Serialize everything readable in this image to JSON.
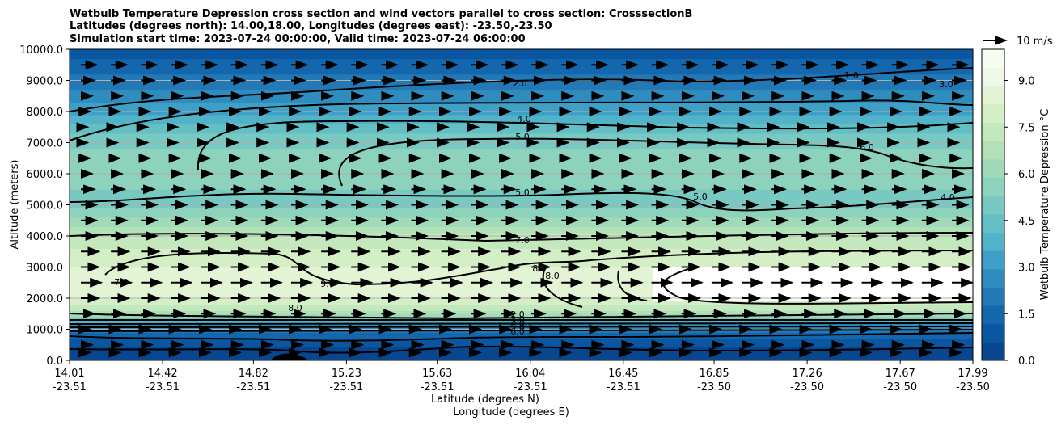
{
  "chart_data": {
    "type": "contourf",
    "title_lines": [
      "Wetbulb Temperature Depression cross section and wind vectors parallel to cross section: CrosssectionB",
      "Latitudes (degrees north): 14.00,18.00, Longitudes (degrees east): -23.50,-23.50",
      "Simulation start time: 2023-07-24 00:00:00, Valid time: 2023-07-24 06:00:00"
    ],
    "ylabel": "Altitude (meters)",
    "xlabel_lines": [
      "Latitude (degrees N)",
      "Longitude (degrees E)"
    ],
    "ylim": [
      0,
      10000
    ],
    "yticks": [
      "0.0",
      "1000.0",
      "2000.0",
      "3000.0",
      "4000.0",
      "5000.0",
      "6000.0",
      "7000.0",
      "8000.0",
      "9000.0",
      "10000.0"
    ],
    "xticks_lat": [
      "14.01",
      "14.42",
      "14.82",
      "15.23",
      "15.63",
      "16.04",
      "16.45",
      "16.85",
      "17.26",
      "17.67",
      "17.99"
    ],
    "xticks_lon": [
      "-23.51",
      "-23.51",
      "-23.51",
      "-23.51",
      "-23.51",
      "-23.51",
      "-23.51",
      "-23.50",
      "-23.50",
      "-23.50",
      "-23.50"
    ],
    "xrange": [
      14.01,
      17.99
    ],
    "grid": "horizontal",
    "colorbar": {
      "label": "Wetbulb Temperature Depression °C",
      "ticks": [
        "0.0",
        "1.5",
        "3.0",
        "4.5",
        "6.0",
        "7.5",
        "9.0"
      ],
      "range": [
        0,
        10
      ],
      "colors": [
        "#08468f",
        "#0a56a0",
        "#1467ad",
        "#2279b6",
        "#2f8cbf",
        "#3ea0c6",
        "#52b2c8",
        "#64bfc5",
        "#78c9c2",
        "#8cd2bd",
        "#a0dab8",
        "#b2e1b7",
        "#c4e8bd",
        "#d4eec6",
        "#e2f4d3",
        "#eef9e5",
        "#f7fcf0"
      ]
    },
    "quiver_key": {
      "label": "10 m/s",
      "speed": 10
    },
    "contour_labels": [
      "2.0",
      "4.0",
      "5.0",
      "5.0",
      "7.0",
      "8.0",
      "8.0",
      "6.0",
      "5.0",
      "4.0",
      "3.0",
      "1.0",
      "2.0",
      "3.0",
      "4.0",
      "5.0",
      "6.0",
      "7.0",
      "8.0",
      "9.0"
    ],
    "field_profile": [
      {
        "z": 0,
        "v": 0.3
      },
      {
        "z": 300,
        "v": 0.6
      },
      {
        "z": 600,
        "v": 1.0
      },
      {
        "z": 900,
        "v": 1.6
      },
      {
        "z": 1200,
        "v": 3.2
      },
      {
        "z": 1500,
        "v": 6.5
      },
      {
        "z": 2000,
        "v": 8.4
      },
      {
        "z": 2500,
        "v": 8.6
      },
      {
        "z": 3000,
        "v": 8.2
      },
      {
        "z": 3500,
        "v": 7.8
      },
      {
        "z": 4000,
        "v": 7.2
      },
      {
        "z": 4500,
        "v": 6.0
      },
      {
        "z": 5000,
        "v": 5.0
      },
      {
        "z": 6000,
        "v": 5.6
      },
      {
        "z": 7000,
        "v": 5.2
      },
      {
        "z": 8000,
        "v": 3.4
      },
      {
        "z": 9000,
        "v": 2.0
      },
      {
        "z": 10000,
        "v": 0.8
      }
    ],
    "wind_profile": [
      {
        "z": 250,
        "u": 4
      },
      {
        "z": 500,
        "u": 5
      },
      {
        "z": 1000,
        "u": 4
      },
      {
        "z": 1500,
        "u": 6
      },
      {
        "z": 2000,
        "u": 8
      },
      {
        "z": 2500,
        "u": 9
      },
      {
        "z": 3000,
        "u": 8
      },
      {
        "z": 3500,
        "u": 8
      },
      {
        "z": 4000,
        "u": 7
      },
      {
        "z": 4500,
        "u": 7
      },
      {
        "z": 5000,
        "u": 7
      },
      {
        "z": 5500,
        "u": 6
      },
      {
        "z": 6000,
        "u": 5
      },
      {
        "z": 6500,
        "u": 4
      },
      {
        "z": 7000,
        "u": 3
      },
      {
        "z": 7500,
        "u": 3
      },
      {
        "z": 8000,
        "u": 4
      },
      {
        "z": 8500,
        "u": 5
      },
      {
        "z": 9000,
        "u": 6
      },
      {
        "z": 9500,
        "u": 7
      }
    ]
  }
}
